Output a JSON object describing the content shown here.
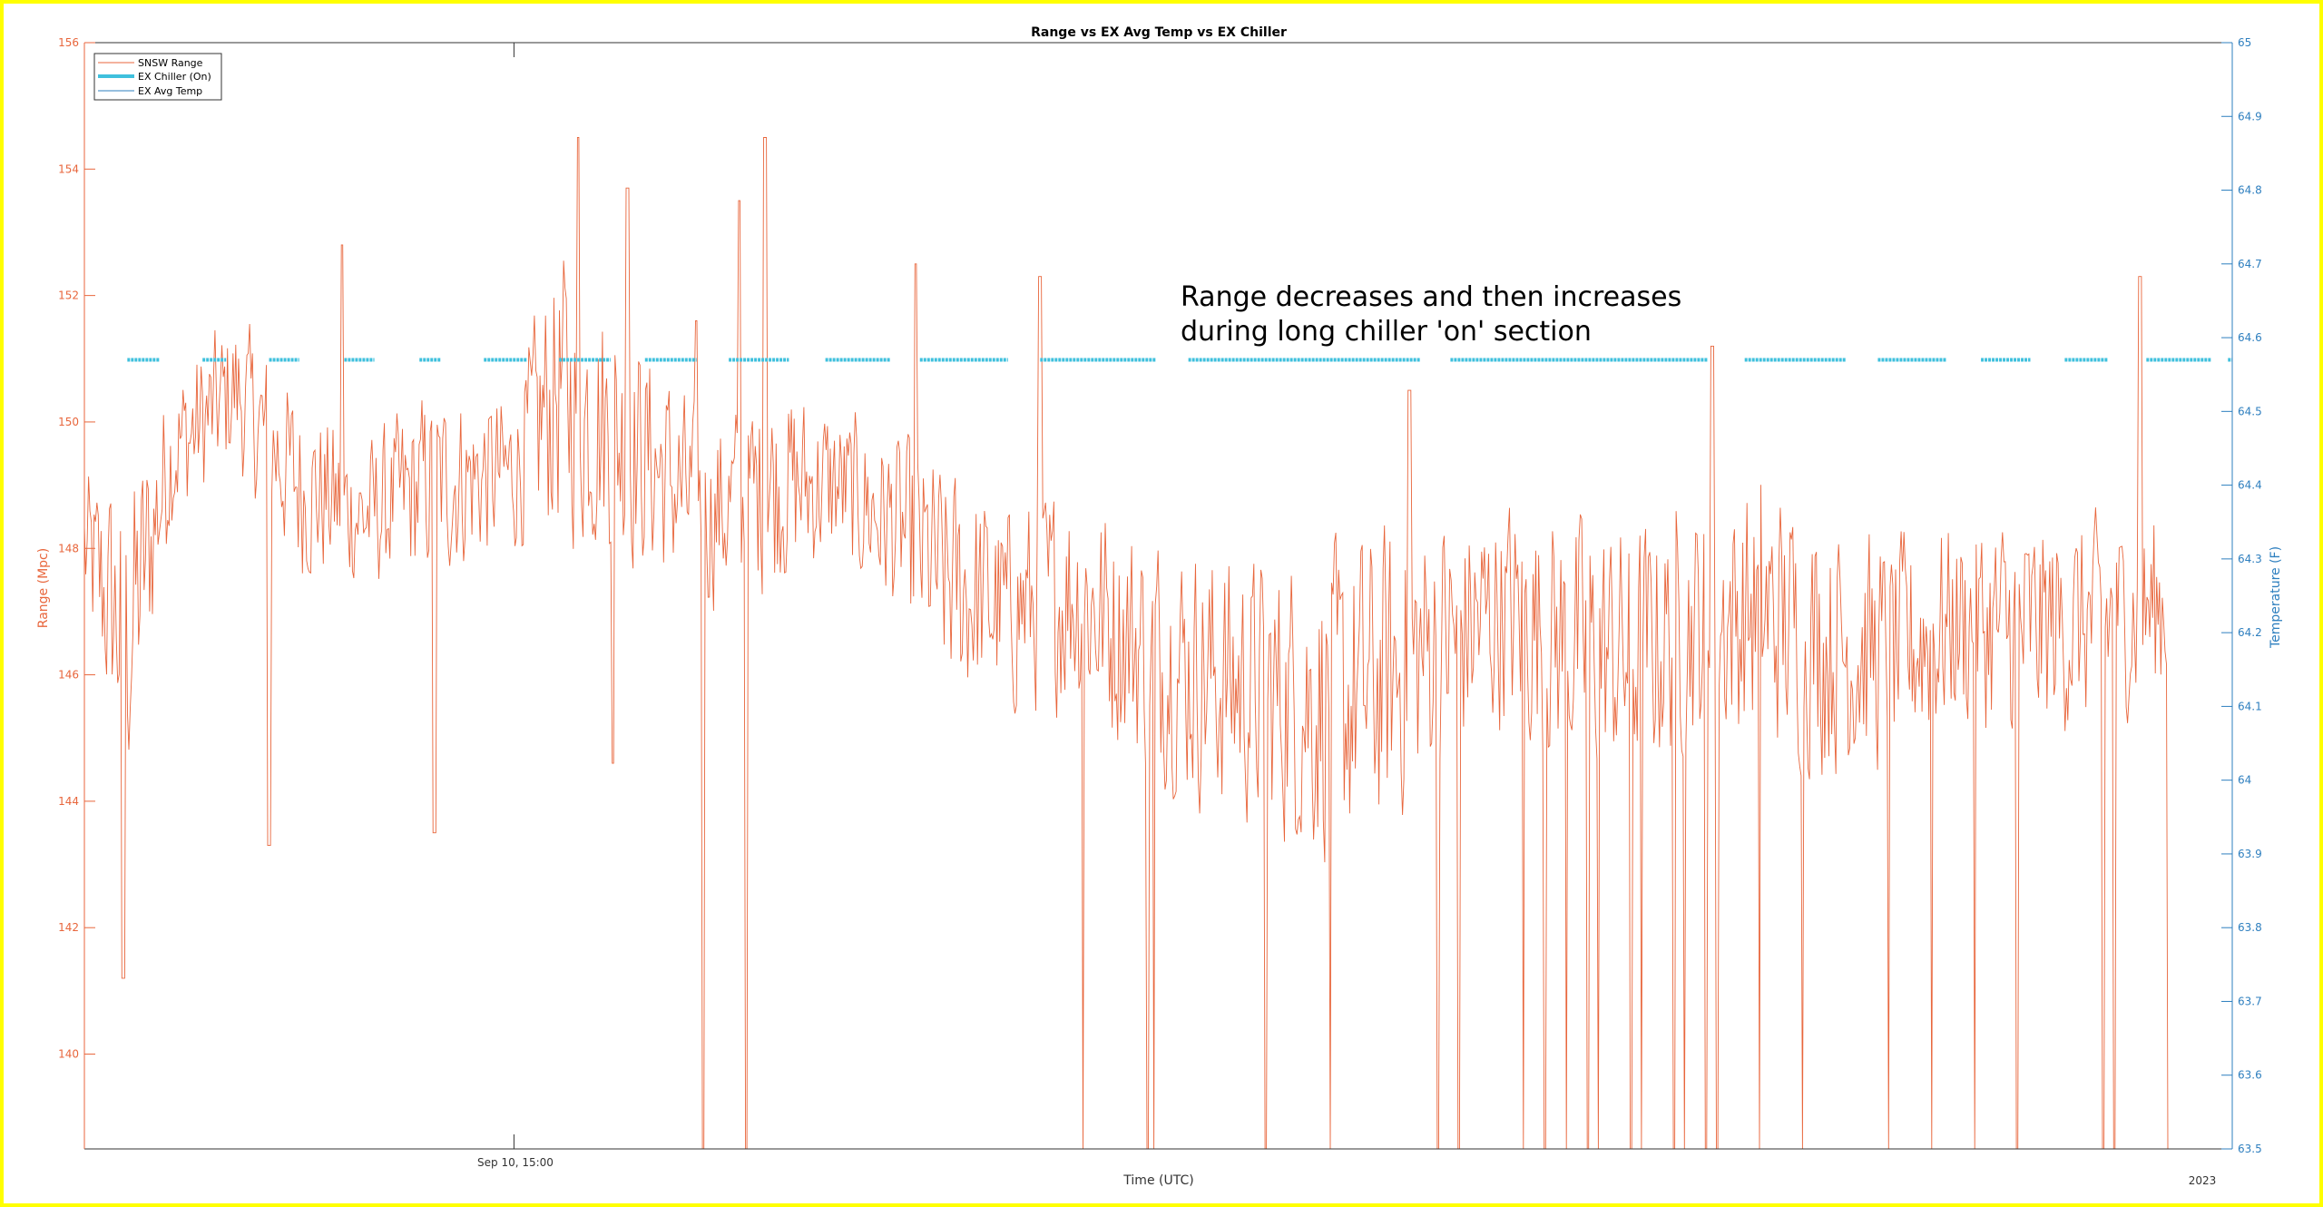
{
  "chart_data": {
    "type": "line",
    "title": "Range vs EX Avg Temp vs EX Chiller",
    "xlabel": "Time (UTC)",
    "ylabel_left": "Range (Mpc)",
    "ylabel_right": "Temperature (F)",
    "x_tick_label": "Sep 10, 15:00",
    "x_corner_label": "2023",
    "ylim_left": [
      138.5,
      156
    ],
    "ylim_right": [
      63.5,
      65
    ],
    "yticks_left": [
      140,
      142,
      144,
      146,
      148,
      150,
      152,
      154,
      156
    ],
    "yticks_right": [
      "63.5",
      "63.6",
      "63.7",
      "63.8",
      "63.9",
      "64",
      "64.1",
      "64.2",
      "64.3",
      "64.4",
      "64.5",
      "64.6",
      "64.7",
      "64.8",
      "64.9",
      "65"
    ],
    "legend_location": "top-left",
    "legend": [
      "SNSW Range",
      "EX Chiller (On)",
      "EX Avg Temp"
    ],
    "annotation": [
      "Range decreases and then increases",
      "during long chiller 'on' section"
    ],
    "x_domain": [
      0,
      1
    ],
    "x_tick_position": 0.2,
    "chiller_level": 64.57,
    "chiller_on_intervals": [
      [
        0.02,
        0.035
      ],
      [
        0.055,
        0.066
      ],
      [
        0.086,
        0.1
      ],
      [
        0.121,
        0.135
      ],
      [
        0.156,
        0.166
      ],
      [
        0.186,
        0.206
      ],
      [
        0.221,
        0.245
      ],
      [
        0.261,
        0.285
      ],
      [
        0.3,
        0.328
      ],
      [
        0.345,
        0.375
      ],
      [
        0.389,
        0.43
      ],
      [
        0.445,
        0.499
      ],
      [
        0.514,
        0.622
      ],
      [
        0.636,
        0.756
      ],
      [
        0.773,
        0.82
      ],
      [
        0.835,
        0.867
      ],
      [
        0.883,
        0.906
      ],
      [
        0.922,
        0.942
      ],
      [
        0.96,
        0.99
      ],
      [
        0.998,
        1.0
      ]
    ],
    "range_envelope": {
      "x": [
        0.0,
        0.02,
        0.04,
        0.07,
        0.1,
        0.13,
        0.16,
        0.2,
        0.22,
        0.24,
        0.26,
        0.29,
        0.32,
        0.35,
        0.38,
        0.4,
        0.43,
        0.46,
        0.49,
        0.52,
        0.55,
        0.58,
        0.6,
        0.63,
        0.66,
        0.69,
        0.72,
        0.75,
        0.78,
        0.81,
        0.84,
        0.87,
        0.9,
        0.93,
        0.96,
        0.99,
        1.0
      ],
      "center": [
        148.0,
        146.5,
        149.5,
        150.5,
        149.0,
        148.5,
        149.0,
        149.2,
        150.5,
        150.0,
        149.5,
        148.5,
        149.0,
        149.0,
        148.3,
        147.5,
        147.0,
        147.3,
        146.5,
        146.0,
        145.7,
        145.5,
        145.8,
        146.5,
        147.0,
        146.5,
        146.3,
        146.8,
        147.0,
        146.5,
        146.3,
        146.8,
        146.7,
        146.8,
        147.0,
        147.5,
        147.2
      ],
      "amplitude": [
        1.5,
        3.0,
        1.5,
        1.5,
        1.8,
        1.4,
        1.8,
        1.5,
        2.8,
        2.5,
        2.2,
        1.8,
        2.0,
        1.5,
        1.8,
        2.2,
        2.0,
        2.2,
        2.3,
        2.5,
        2.6,
        3.0,
        3.0,
        2.5,
        2.2,
        2.5,
        2.5,
        2.3,
        2.5,
        2.5,
        2.2,
        2.0,
        2.2,
        2.0,
        1.8,
        2.2,
        2.0
      ]
    },
    "range_dropouts": [
      0.288,
      0.308,
      0.465,
      0.495,
      0.498,
      0.55,
      0.58,
      0.63,
      0.64,
      0.67,
      0.68,
      0.69,
      0.7,
      0.705,
      0.72,
      0.725,
      0.74,
      0.745,
      0.755,
      0.76,
      0.78,
      0.8,
      0.84,
      0.86,
      0.88,
      0.9,
      0.94,
      0.945,
      0.97,
      0.98
    ],
    "range_spikes": [
      [
        0.12,
        152.8
      ],
      [
        0.23,
        154.5
      ],
      [
        0.253,
        153.7
      ],
      [
        0.285,
        151.6
      ],
      [
        0.305,
        153.5
      ],
      [
        0.317,
        154.5
      ],
      [
        0.387,
        152.5
      ],
      [
        0.445,
        152.3
      ],
      [
        0.617,
        150.5
      ],
      [
        0.758,
        151.2
      ],
      [
        0.957,
        152.3
      ],
      [
        0.018,
        141.2
      ],
      [
        0.086,
        143.3
      ],
      [
        0.163,
        143.5
      ],
      [
        0.246,
        144.6
      ]
    ]
  }
}
